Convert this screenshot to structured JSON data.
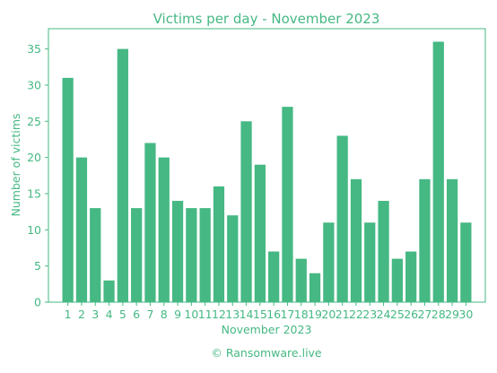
{
  "chart_data": {
    "type": "bar",
    "title": "Victims per day - November 2023",
    "xlabel": "November 2023",
    "ylabel": "Number of victims",
    "categories": [
      "1",
      "2",
      "3",
      "4",
      "5",
      "6",
      "7",
      "8",
      "9",
      "10",
      "11",
      "12",
      "13",
      "14",
      "15",
      "16",
      "17",
      "18",
      "19",
      "20",
      "21",
      "22",
      "23",
      "24",
      "25",
      "26",
      "27",
      "28",
      "29",
      "30"
    ],
    "values": [
      31,
      20,
      13,
      3,
      35,
      13,
      22,
      20,
      14,
      13,
      13,
      16,
      12,
      25,
      19,
      7,
      27,
      6,
      4,
      11,
      23,
      17,
      11,
      14,
      6,
      7,
      17,
      36,
      17,
      11
    ],
    "ylim": [
      0,
      37.8
    ],
    "yticks": [
      0,
      5,
      10,
      15,
      20,
      25,
      30,
      35
    ],
    "grid": false,
    "bar_color": "#45b883",
    "text_color": "#45b883"
  },
  "footer": {
    "credit": "© Ransomware.live"
  }
}
